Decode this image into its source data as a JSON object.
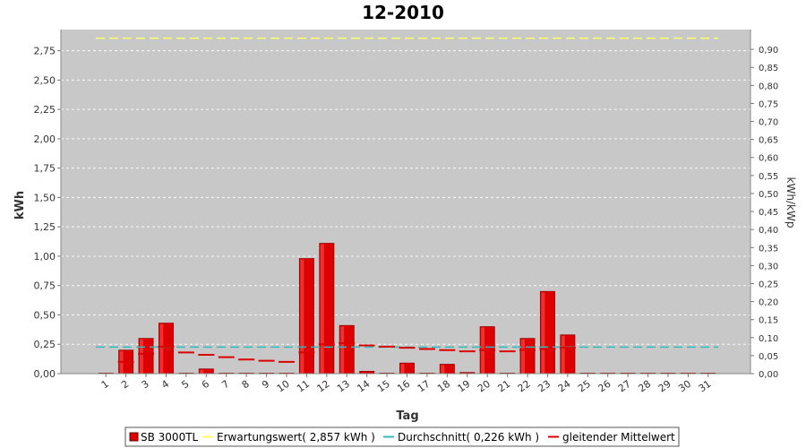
{
  "chart_data": {
    "type": "bar",
    "title": "12-2010",
    "xlabel": "Tag",
    "ylabel": "kWh",
    "y2label": "kWh/kWp",
    "categories": [
      "1",
      "2",
      "3",
      "4",
      "5",
      "6",
      "7",
      "8",
      "9",
      "10",
      "11",
      "12",
      "13",
      "14",
      "15",
      "16",
      "17",
      "18",
      "19",
      "20",
      "21",
      "22",
      "23",
      "24",
      "25",
      "26",
      "27",
      "28",
      "29",
      "30",
      "31"
    ],
    "ylim": [
      0,
      2.93
    ],
    "y2lim": [
      0,
      0.955
    ],
    "yticks": [
      "0,00",
      "0,25",
      "0,50",
      "0,75",
      "1,00",
      "1,25",
      "1,50",
      "1,75",
      "2,00",
      "2,25",
      "2,50",
      "2,75"
    ],
    "y2ticks": [
      "0,00",
      "0,05",
      "0,10",
      "0,15",
      "0,20",
      "0,25",
      "0,30",
      "0,35",
      "0,40",
      "0,45",
      "0,50",
      "0,55",
      "0,60",
      "0,65",
      "0,70",
      "0,75",
      "0,80",
      "0,85",
      "0,90"
    ],
    "grid": true,
    "colors": {
      "plot_bg": "#c8c8c8",
      "bar": "#dd0000",
      "bar_dark": "#990000",
      "expected": "#ffff66",
      "average": "#33bbbb",
      "moving_avg": "#dd0000"
    },
    "series": [
      {
        "name": "SB 3000TL",
        "kind": "bar",
        "values": [
          0.0,
          0.2,
          0.3,
          0.43,
          0.0,
          0.04,
          0.0,
          0.0,
          0.0,
          0.0,
          0.98,
          1.11,
          0.41,
          0.02,
          0.0,
          0.09,
          0.0,
          0.08,
          0.01,
          0.4,
          0.0,
          0.3,
          0.7,
          0.33,
          0.0,
          0.0,
          0.0,
          0.0,
          0.0,
          0.0,
          0.0
        ]
      },
      {
        "name": "Erwartungswert( 2,857 kWh )",
        "kind": "line",
        "values": [
          2.857,
          2.857,
          2.857,
          2.857,
          2.857,
          2.857,
          2.857,
          2.857,
          2.857,
          2.857,
          2.857,
          2.857,
          2.857,
          2.857,
          2.857,
          2.857,
          2.857,
          2.857,
          2.857,
          2.857,
          2.857,
          2.857,
          2.857,
          2.857,
          2.857,
          2.857,
          2.857,
          2.857,
          2.857,
          2.857,
          2.857
        ]
      },
      {
        "name": "Durchschnitt( 0,226 kWh )",
        "kind": "line",
        "values": [
          0.226,
          0.226,
          0.226,
          0.226,
          0.226,
          0.226,
          0.226,
          0.226,
          0.226,
          0.226,
          0.226,
          0.226,
          0.226,
          0.226,
          0.226,
          0.226,
          0.226,
          0.226,
          0.226,
          0.226,
          0.226,
          0.226,
          0.226,
          0.226,
          0.226,
          0.226,
          0.226,
          0.226,
          0.226,
          0.226,
          0.226
        ]
      },
      {
        "name": "gleitender Mittelwert",
        "kind": "line",
        "values": [
          null,
          0.1,
          0.17,
          0.23,
          0.18,
          0.16,
          0.14,
          0.12,
          0.11,
          0.1,
          0.18,
          0.25,
          0.26,
          0.24,
          0.23,
          0.22,
          0.21,
          0.2,
          0.19,
          0.2,
          0.19,
          0.2,
          0.21,
          0.22,
          null,
          null,
          null,
          null,
          null,
          null,
          null
        ]
      }
    ]
  }
}
